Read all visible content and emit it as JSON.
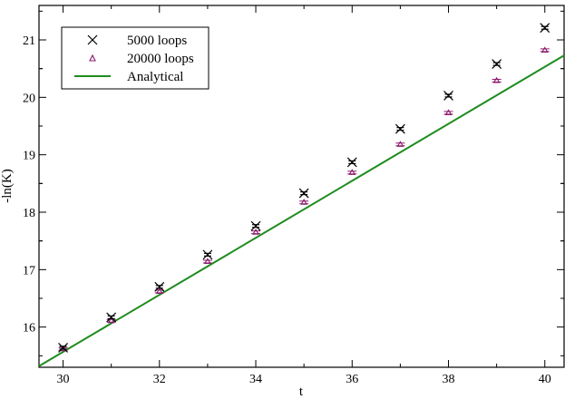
{
  "chart_data": {
    "type": "scatter",
    "xlabel": "t",
    "ylabel": "-ln(K)",
    "xlim": [
      29.5,
      40.4
    ],
    "ylim": [
      15.3,
      21.6
    ],
    "x_ticks": [
      "30",
      "32",
      "34",
      "36",
      "38",
      "40"
    ],
    "y_ticks": [
      "16",
      "17",
      "18",
      "19",
      "20",
      "21"
    ],
    "legend_position": "top-left",
    "grid": false,
    "series": [
      {
        "name": "5000 loops",
        "marker": "x",
        "color": "#000000",
        "x": [
          30,
          31,
          32,
          33,
          34,
          35,
          36,
          37,
          38,
          39,
          40
        ],
        "y": [
          15.64,
          16.17,
          16.7,
          17.26,
          17.76,
          18.33,
          18.87,
          19.45,
          20.03,
          20.58,
          21.21
        ]
      },
      {
        "name": "20000 loops",
        "marker": "triangle",
        "color": "#8B1A6B",
        "x": [
          30,
          31,
          32,
          33,
          34,
          35,
          36,
          37,
          38,
          39,
          40
        ],
        "y": [
          15.62,
          16.11,
          16.62,
          17.14,
          17.65,
          18.17,
          18.69,
          19.18,
          19.73,
          20.29,
          20.82
        ]
      },
      {
        "name": "Analytical",
        "marker": "line",
        "color": "#1E8C1E",
        "x": [
          29.5,
          40.4
        ],
        "y": [
          15.32,
          20.73
        ]
      }
    ]
  }
}
